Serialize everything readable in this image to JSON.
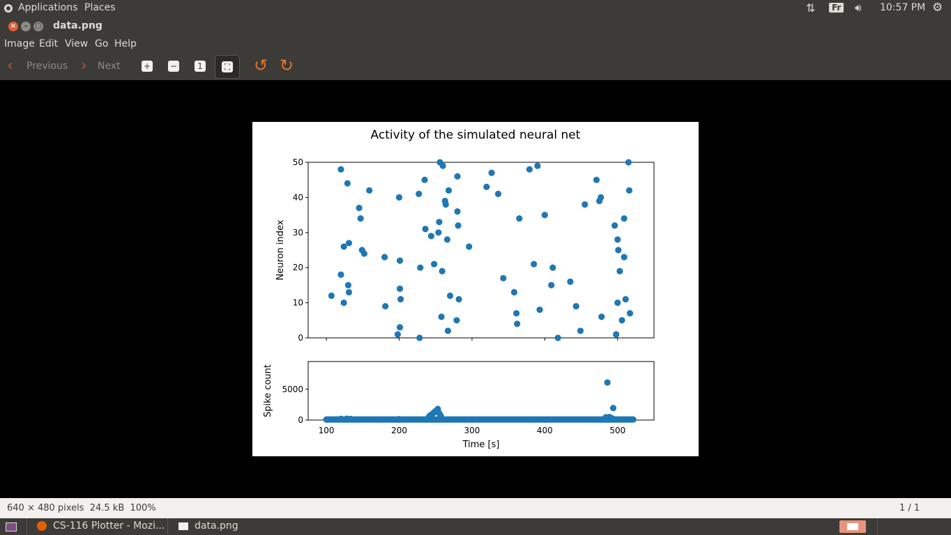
{
  "topbar": {
    "applications": "Applications",
    "places": "Places",
    "keyboard_layout": "Fr",
    "clock": "10:57 PM"
  },
  "window": {
    "title": "data.png"
  },
  "menubar": {
    "items": [
      "Image",
      "Edit",
      "View",
      "Go",
      "Help"
    ]
  },
  "toolbar": {
    "previous_label": "Previous",
    "next_label": "Next"
  },
  "statusbar": {
    "image_info": "640 × 480 pixels  24.5 kB  100%",
    "page": "1 / 1"
  },
  "taskbar": {
    "firefox_label": "CS-116 Plotter - Mozi...",
    "eog_label": "data.png"
  },
  "colors": {
    "marker": "#1f77b4",
    "panel": "#3c3b37",
    "close": "#e25d33"
  },
  "chart_data": {
    "type": "scatter",
    "title": "Activity of the simulated neural net",
    "raster": {
      "ylabel": "Neuron index",
      "xlim": [
        75,
        550
      ],
      "ylim": [
        0,
        50
      ],
      "yticks": [
        0,
        10,
        20,
        30,
        40,
        50
      ],
      "points": [
        [
          107,
          12
        ],
        [
          120,
          48
        ],
        [
          120,
          18
        ],
        [
          124,
          26
        ],
        [
          124,
          10
        ],
        [
          129,
          44
        ],
        [
          130,
          15
        ],
        [
          131,
          27
        ],
        [
          131,
          13
        ],
        [
          145,
          37
        ],
        [
          147,
          34
        ],
        [
          149,
          25
        ],
        [
          152,
          24
        ],
        [
          159,
          42
        ],
        [
          180,
          23
        ],
        [
          181,
          9
        ],
        [
          198,
          1
        ],
        [
          200,
          40
        ],
        [
          201,
          22
        ],
        [
          201,
          14
        ],
        [
          201,
          3
        ],
        [
          202,
          11
        ],
        [
          227,
          41
        ],
        [
          228,
          0
        ],
        [
          229,
          20
        ],
        [
          235,
          45
        ],
        [
          236,
          31
        ],
        [
          244,
          29
        ],
        [
          248,
          21
        ],
        [
          254,
          30
        ],
        [
          255,
          33
        ],
        [
          256,
          50
        ],
        [
          258,
          6
        ],
        [
          259,
          19
        ],
        [
          260,
          49
        ],
        [
          263,
          39
        ],
        [
          264,
          38
        ],
        [
          266,
          28
        ],
        [
          267,
          2
        ],
        [
          268,
          42
        ],
        [
          270,
          12
        ],
        [
          279,
          5
        ],
        [
          280,
          46
        ],
        [
          280,
          36
        ],
        [
          281,
          32
        ],
        [
          282,
          11
        ],
        [
          296,
          26
        ],
        [
          320,
          43
        ],
        [
          327,
          47
        ],
        [
          336,
          41
        ],
        [
          343,
          17
        ],
        [
          358,
          13
        ],
        [
          361,
          7
        ],
        [
          362,
          4
        ],
        [
          365,
          34
        ],
        [
          379,
          48
        ],
        [
          385,
          21
        ],
        [
          390,
          49
        ],
        [
          393,
          8
        ],
        [
          400,
          35
        ],
        [
          409,
          15
        ],
        [
          411,
          20
        ],
        [
          418,
          0
        ],
        [
          435,
          16
        ],
        [
          443,
          9
        ],
        [
          449,
          2
        ],
        [
          455,
          38
        ],
        [
          471,
          45
        ],
        [
          475,
          39
        ],
        [
          477,
          40
        ],
        [
          478,
          6
        ],
        [
          496,
          32
        ],
        [
          498,
          1
        ],
        [
          500,
          10
        ],
        [
          500,
          28
        ],
        [
          501,
          25
        ],
        [
          503,
          19
        ],
        [
          506,
          5
        ],
        [
          509,
          34
        ],
        [
          509,
          23
        ],
        [
          511,
          11
        ],
        [
          515,
          50
        ],
        [
          516,
          42
        ],
        [
          517,
          7
        ]
      ]
    },
    "histogram": {
      "ylabel": "Spike count",
      "xlabel": "Time [s]",
      "xlim": [
        75,
        550
      ],
      "xticks": [
        100,
        200,
        300,
        400,
        500
      ],
      "ylim": [
        0,
        9500
      ],
      "yticks": [
        0,
        5000
      ],
      "baseline_x_range": [
        100,
        522
      ],
      "baseline_value": 90,
      "points": [
        [
          120,
          200
        ],
        [
          128,
          220
        ],
        [
          133,
          180
        ],
        [
          200,
          150
        ],
        [
          241,
          550
        ],
        [
          243,
          800
        ],
        [
          246,
          1050
        ],
        [
          248,
          1250
        ],
        [
          250,
          1450
        ],
        [
          253,
          1800
        ],
        [
          255,
          1100
        ],
        [
          257,
          700
        ],
        [
          484,
          450
        ],
        [
          486,
          6100
        ],
        [
          489,
          500
        ],
        [
          492,
          300
        ],
        [
          494,
          1950
        ]
      ]
    }
  }
}
